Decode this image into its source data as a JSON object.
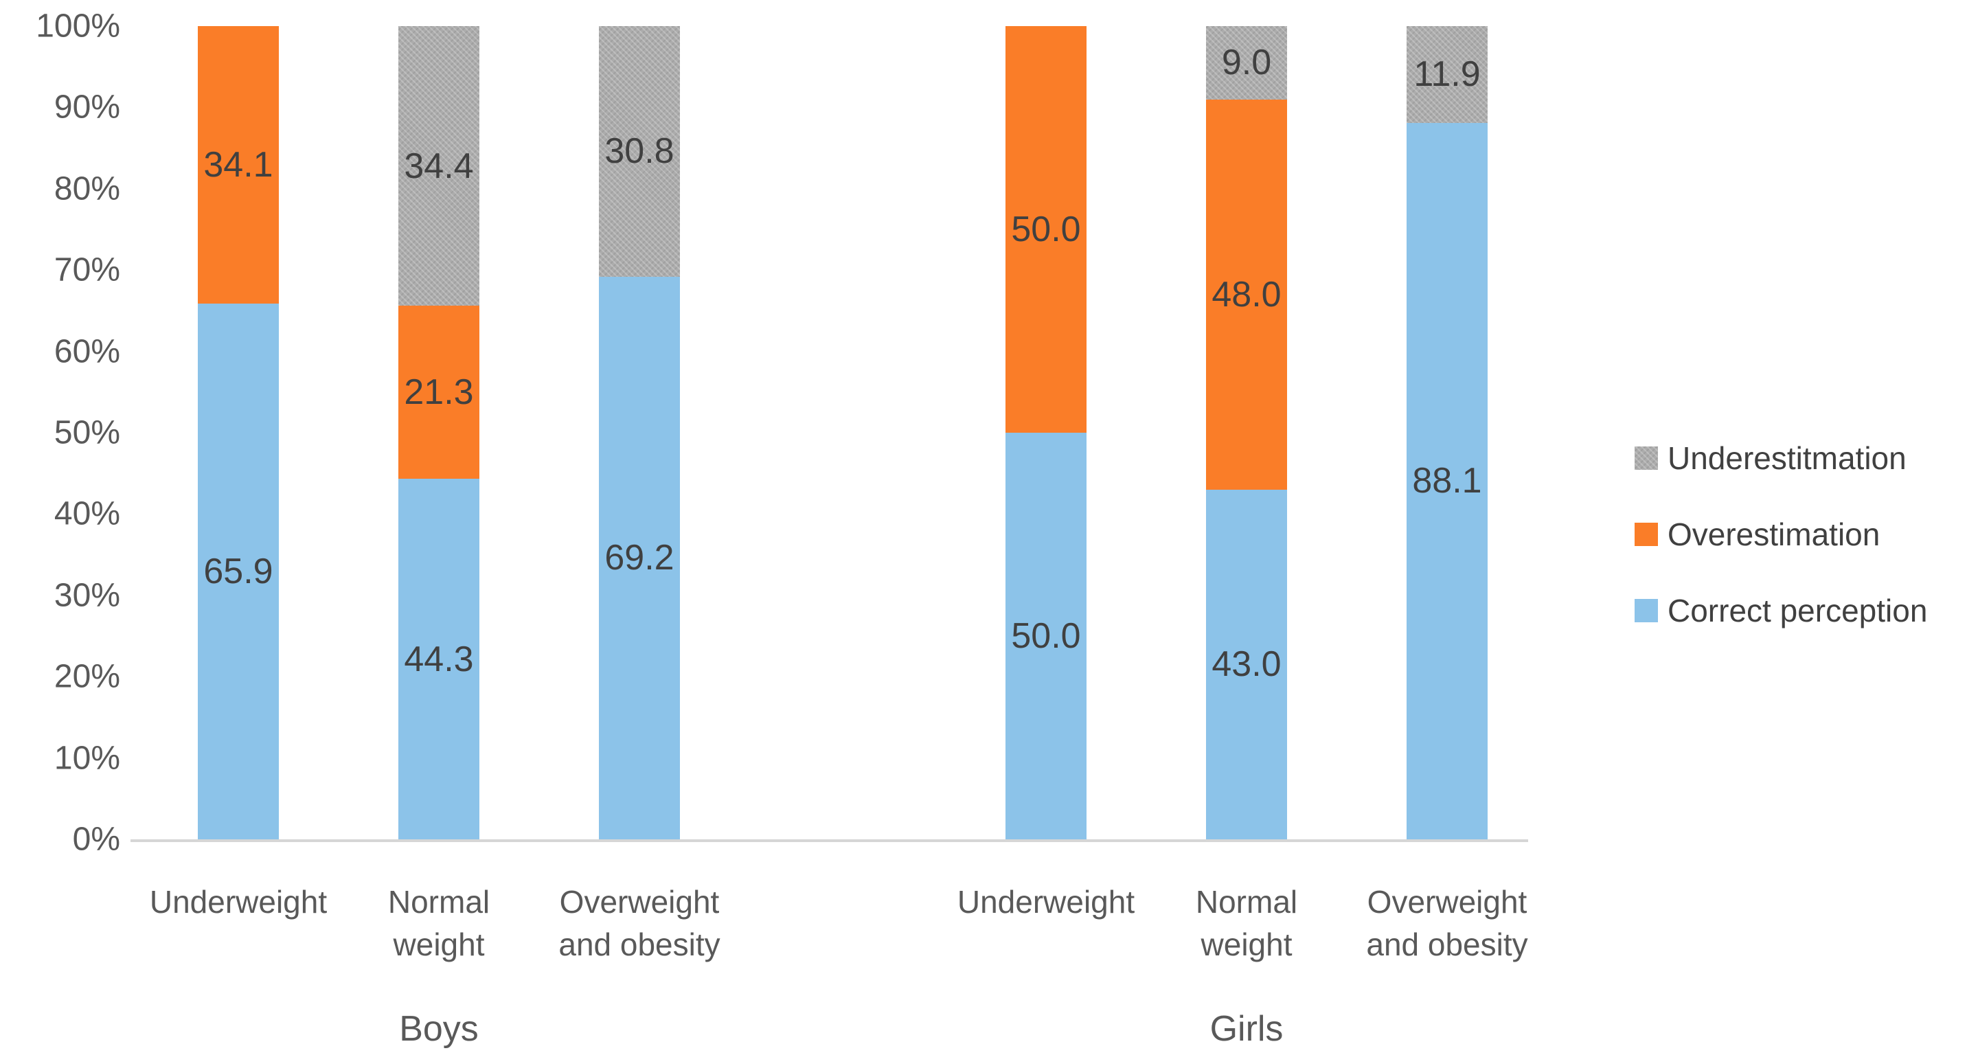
{
  "chart_data": {
    "type": "bar",
    "subtype": "stacked-100-percent-vertical",
    "title": "",
    "xlabel": "",
    "ylabel": "",
    "grid": false,
    "legend_position": "right",
    "y_axis": {
      "min": 0,
      "max": 100,
      "step": 10,
      "tick_labels": [
        "0%",
        "10%",
        "20%",
        "30%",
        "40%",
        "50%",
        "60%",
        "70%",
        "80%",
        "90%",
        "100%"
      ]
    },
    "series": [
      {
        "name": "Correct perception",
        "key": "correct",
        "color": "#8CC3E9",
        "fill": "solid"
      },
      {
        "name": "Overestimation",
        "key": "over",
        "color": "#FA7D28",
        "fill": "solid"
      },
      {
        "name": "Underestitmation",
        "key": "under",
        "color": "#ACACAC",
        "fill": "textured-pattern"
      }
    ],
    "colors": {
      "correct": "#8CC3E9",
      "over": "#FA7D28",
      "under": "#ACACAC",
      "axis_line": "#D6D6D6",
      "tick_text": "#595959",
      "value_text": "#404040"
    },
    "legend": {
      "entries": [
        {
          "label": "Underestitmation",
          "key": "under"
        },
        {
          "label": "Overestimation",
          "key": "over"
        },
        {
          "label": "Correct perception",
          "key": "correct"
        }
      ]
    },
    "groups": [
      {
        "label": "Boys",
        "bars": [
          {
            "category": "Underweight",
            "category_lines": [
              "Underweight"
            ],
            "values": {
              "correct": 65.9,
              "over": 34.1,
              "under": 0
            },
            "labels": {
              "correct": "65.9",
              "over": "34.1",
              "under": ""
            }
          },
          {
            "category": "Normal weight",
            "category_lines": [
              "Normal",
              "weight"
            ],
            "values": {
              "correct": 44.3,
              "over": 21.3,
              "under": 34.4
            },
            "labels": {
              "correct": "44.3",
              "over": "21.3",
              "under": "34.4"
            }
          },
          {
            "category": "Overweight and obesity",
            "category_lines": [
              "Overweight",
              "and obesity"
            ],
            "values": {
              "correct": 69.2,
              "over": 0,
              "under": 30.8
            },
            "labels": {
              "correct": "69.2",
              "over": "",
              "under": "30.8"
            }
          }
        ]
      },
      {
        "label": "Girls",
        "bars": [
          {
            "category": "Underweight",
            "category_lines": [
              "Underweight"
            ],
            "values": {
              "correct": 50.0,
              "over": 50.0,
              "under": 0
            },
            "labels": {
              "correct": "50.0",
              "over": "50.0",
              "under": ""
            }
          },
          {
            "category": "Normal weight",
            "category_lines": [
              "Normal",
              "weight"
            ],
            "values": {
              "correct": 43.0,
              "over": 48.0,
              "under": 9.0
            },
            "labels": {
              "correct": "43.0",
              "over": "48.0",
              "under": "9.0"
            }
          },
          {
            "category": "Overweight and obesity",
            "category_lines": [
              "Overweight",
              "and obesity"
            ],
            "values": {
              "correct": 88.1,
              "over": 0,
              "under": 11.9
            },
            "labels": {
              "correct": "88.1",
              "over": "",
              "under": "11.9"
            }
          }
        ]
      }
    ]
  }
}
